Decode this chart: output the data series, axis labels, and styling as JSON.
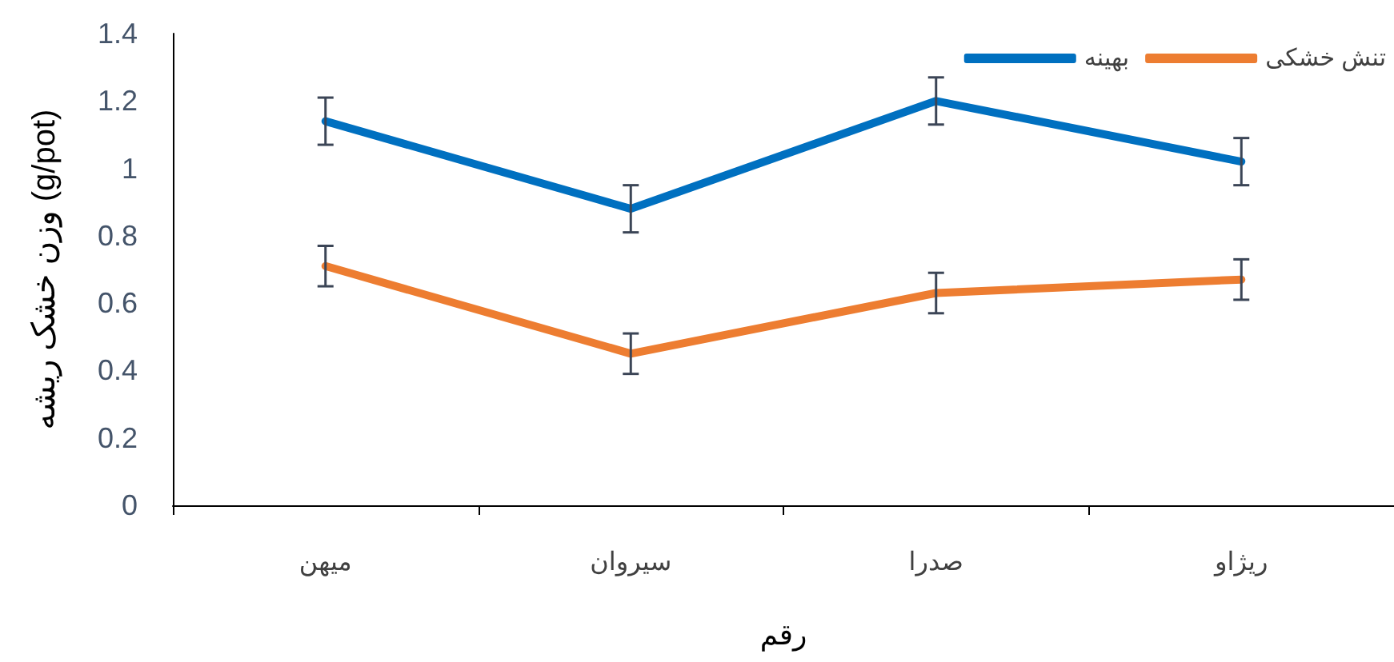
{
  "chart_data": {
    "type": "line",
    "xlabel": "رقم",
    "ylabel": "وزن خشک ریشه (g/pot)",
    "categories": [
      "میهن",
      "سیروان",
      "صدرا",
      "ریژاو"
    ],
    "series": [
      {
        "name": "بهینه",
        "color": "#0070c0",
        "values": [
          1.14,
          0.88,
          1.2,
          1.02
        ],
        "errors": [
          0.07,
          0.07,
          0.07,
          0.07
        ]
      },
      {
        "name": "تنش خشکی",
        "color": "#ed7d31",
        "values": [
          0.71,
          0.45,
          0.63,
          0.67
        ],
        "errors": [
          0.06,
          0.06,
          0.06,
          0.06
        ]
      }
    ],
    "ylim": [
      0,
      1.4
    ],
    "yticks": [
      0,
      0.2,
      0.4,
      0.6,
      0.8,
      1,
      1.2,
      1.4
    ],
    "grid": false,
    "legend": "top right",
    "marker": "none",
    "line_style": "solid"
  }
}
